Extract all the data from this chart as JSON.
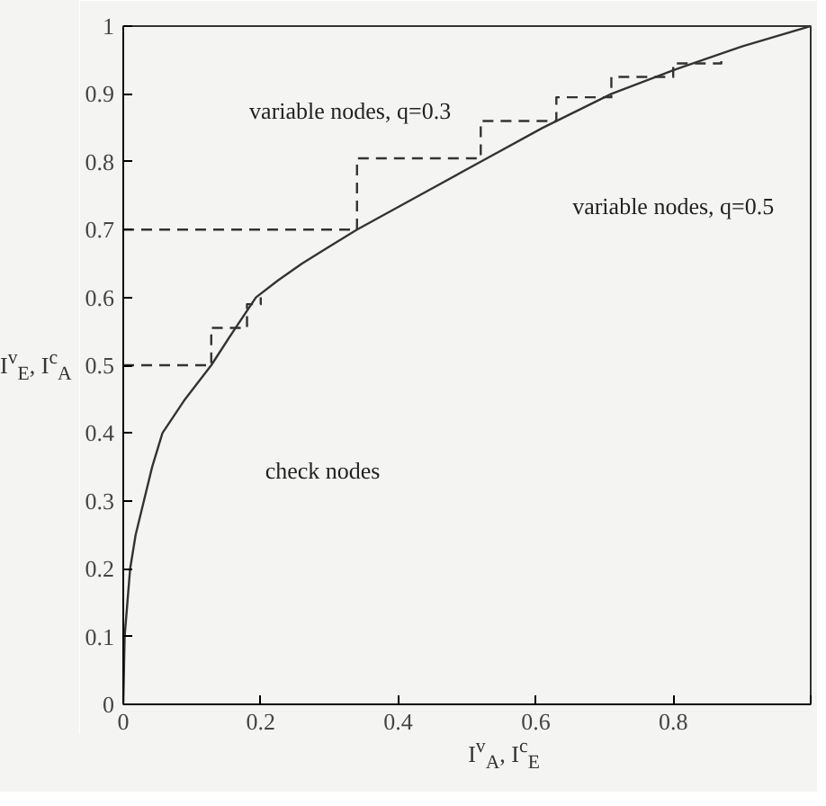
{
  "chart_data": {
    "type": "line",
    "xlabel": "I$^{v}$$_{A}$, I$^{c}$$_{E}$",
    "ylabel": "I$^{v}$$_{E}$, I$^{c}$$_{A}$",
    "xlim": [
      0,
      1
    ],
    "ylim": [
      0,
      1
    ],
    "xticks": [
      0,
      0.2,
      0.4,
      0.6,
      0.8,
      {
        "value": 1,
        "label": null
      }
    ],
    "yticks": [
      0,
      0.1,
      0.2,
      0.3,
      0.4,
      0.5,
      0.6,
      0.7,
      0.8,
      0.9,
      1
    ],
    "grid": false,
    "marker": "none",
    "series": [
      {
        "color": "#333333",
        "line_style": "solid",
        "x": [
          0,
          0.002,
          0.006,
          0.01,
          0.018,
          0.03,
          0.042,
          0.057,
          0.09,
          0.128,
          0.16,
          0.193,
          0.225,
          0.26,
          0.3,
          0.34,
          0.43,
          0.52,
          0.61,
          0.71,
          0.8,
          0.9,
          1
        ],
        "values": [
          0,
          0.1,
          0.15,
          0.2,
          0.25,
          0.3,
          0.35,
          0.4,
          0.45,
          0.5,
          0.55,
          0.6,
          0.625,
          0.65,
          0.675,
          0.7,
          0.75,
          0.8,
          0.85,
          0.9,
          0.935,
          0.97,
          1
        ]
      },
      {
        "color": "#333333",
        "line_style": "dashed",
        "x": [
          0,
          0.34,
          0.34,
          0.52,
          0.52,
          0.63,
          0.63,
          0.71,
          0.71,
          0.8,
          0.8,
          0.87,
          0.87
        ],
        "values": [
          0.7,
          0.7,
          0.805,
          0.805,
          0.86,
          0.86,
          0.895,
          0.895,
          0.925,
          0.925,
          0.945,
          0.945,
          0.96
        ]
      },
      {
        "color": "#333333",
        "line_style": "dashed",
        "x": [
          0,
          0.128,
          0.128,
          0.18,
          0.18,
          0.2,
          0.2
        ],
        "values": [
          0.5,
          0.5,
          0.555,
          0.555,
          0.59,
          0.59,
          0.6
        ]
      }
    ],
    "annotations": [
      "variable nodes, q=0.3",
      "variable nodes, q=0.5",
      "check nodes"
    ]
  }
}
